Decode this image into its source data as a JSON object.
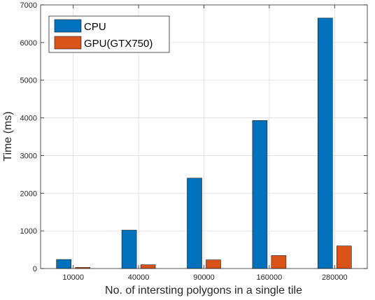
{
  "chart_data": {
    "type": "bar",
    "categories": [
      "10000",
      "40000",
      "90000",
      "160000",
      "280000"
    ],
    "series": [
      {
        "name": "CPU",
        "values": [
          240,
          1020,
          2400,
          3930,
          6650
        ],
        "color": "#0072BD"
      },
      {
        "name": "GPU(GTX750)",
        "values": [
          30,
          100,
          230,
          345,
          600
        ],
        "color": "#D95319"
      }
    ],
    "xlabel": "No. of intersting polygons in a single tile",
    "ylabel": "Time (ms)",
    "ylim": [
      0,
      7000
    ],
    "yticks": [
      "0",
      "1000",
      "2000",
      "3000",
      "4000",
      "5000",
      "6000",
      "7000"
    ],
    "grid": true,
    "legend_position": "top-left"
  }
}
